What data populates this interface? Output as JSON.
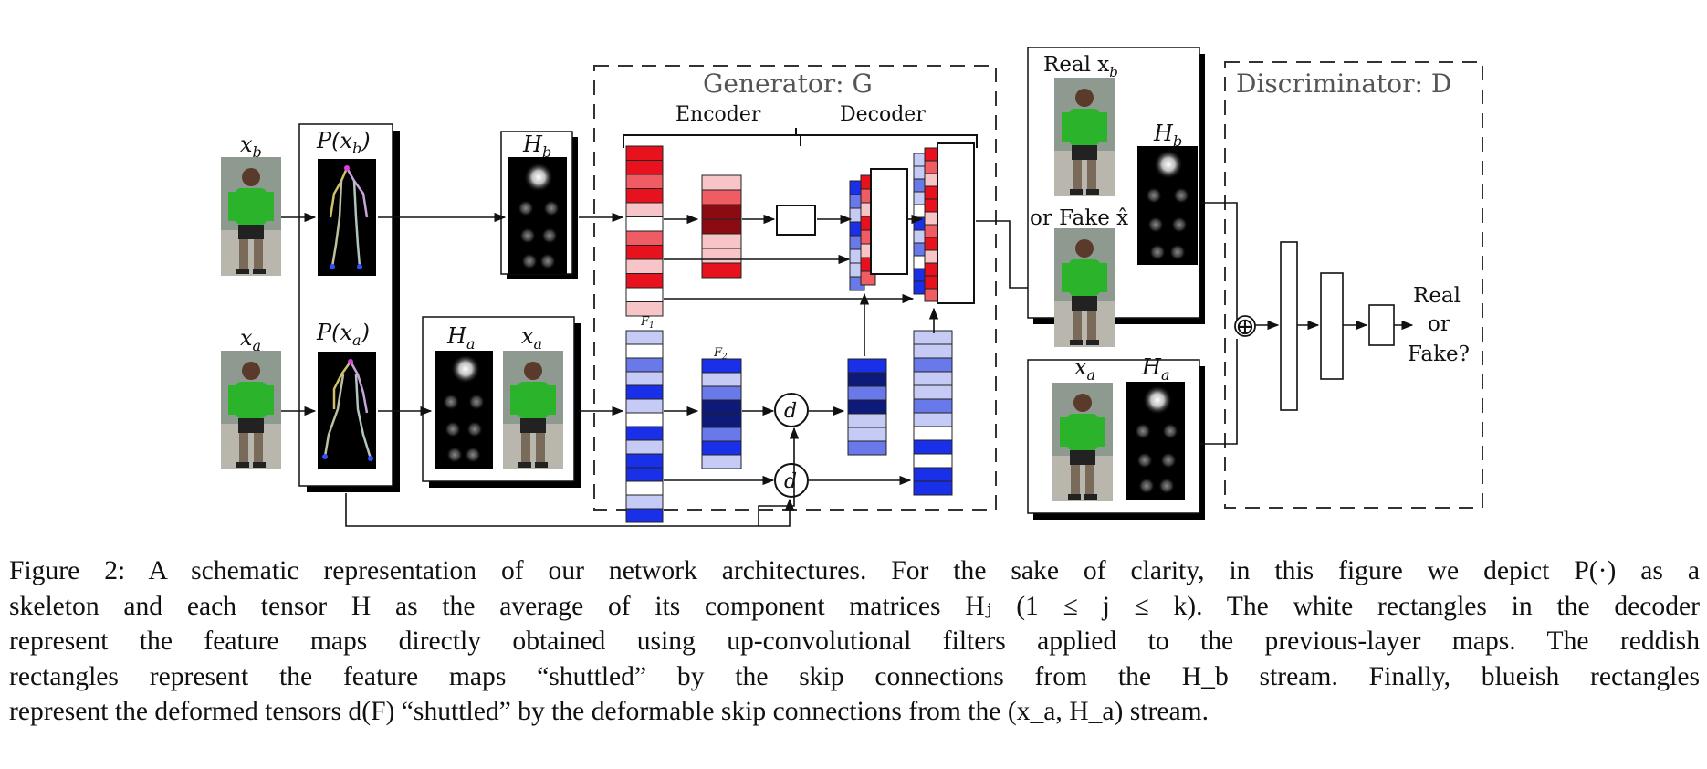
{
  "figure": {
    "generator_label": "Generator: G",
    "discriminator_label": "Discriminator: D",
    "encoder_label": "Encoder",
    "decoder_label": "Decoder",
    "xb_label": "x",
    "xb_sub": "b",
    "xa_label": "x",
    "xa_sub": "a",
    "pxb_label": "P(x",
    "pxb_sub": "b",
    "pxa_label": "P(x",
    "pxa_sub": "a",
    "close_paren": ")",
    "hb_label": "H",
    "hb_sub": "b",
    "ha_label": "H",
    "ha_sub": "a",
    "xa2_label": "x",
    "xa2_sub": "a",
    "f1_label": "F",
    "f1_sub": "1",
    "f2_label": "F",
    "f2_sub": "2",
    "d_symbol": "d",
    "real_xb_prefix": "Real x",
    "real_xb_sub": "b",
    "or_fake": "or Fake x̂",
    "disc_hb_label": "H",
    "disc_hb_sub": "b",
    "disc_xa_label": "x",
    "disc_xa_sub": "a",
    "disc_ha_label": "H",
    "disc_ha_sub": "a",
    "concat_symbol": "⊕",
    "out_real": "Real",
    "out_or": "or",
    "out_fake": "Fake?"
  },
  "caption": {
    "line1": "Figure 2: A schematic representation of our network architectures. For the sake of clarity, in this figure we depict P(·) as a",
    "line2": "skeleton and each tensor H as the average of its component matrices Hⱼ (1 ≤ j ≤ k). The white rectangles in the decoder",
    "line3": "represent the feature maps directly obtained using up-convolutional filters applied to the previous-layer maps. The reddish",
    "line4": "rectangles represent the feature maps “shuttled” by the skip connections from the H_b stream. Finally, blueish rectangles",
    "line5": "represent the deformed tensors d(F) “shuttled” by the deformable skip connections from the (x_a, H_a) stream."
  },
  "colors": {
    "red_strong": "#e8121f",
    "red_mid": "#ef5c64",
    "red_light": "#f7c4c7",
    "red_dark": "#8c0b12",
    "blue_strong": "#1a2fe8",
    "blue_mid": "#6a79ea",
    "blue_light": "#c5cbf4",
    "blue_dark": "#0d1a7a",
    "person_green": "#2bb32b"
  }
}
